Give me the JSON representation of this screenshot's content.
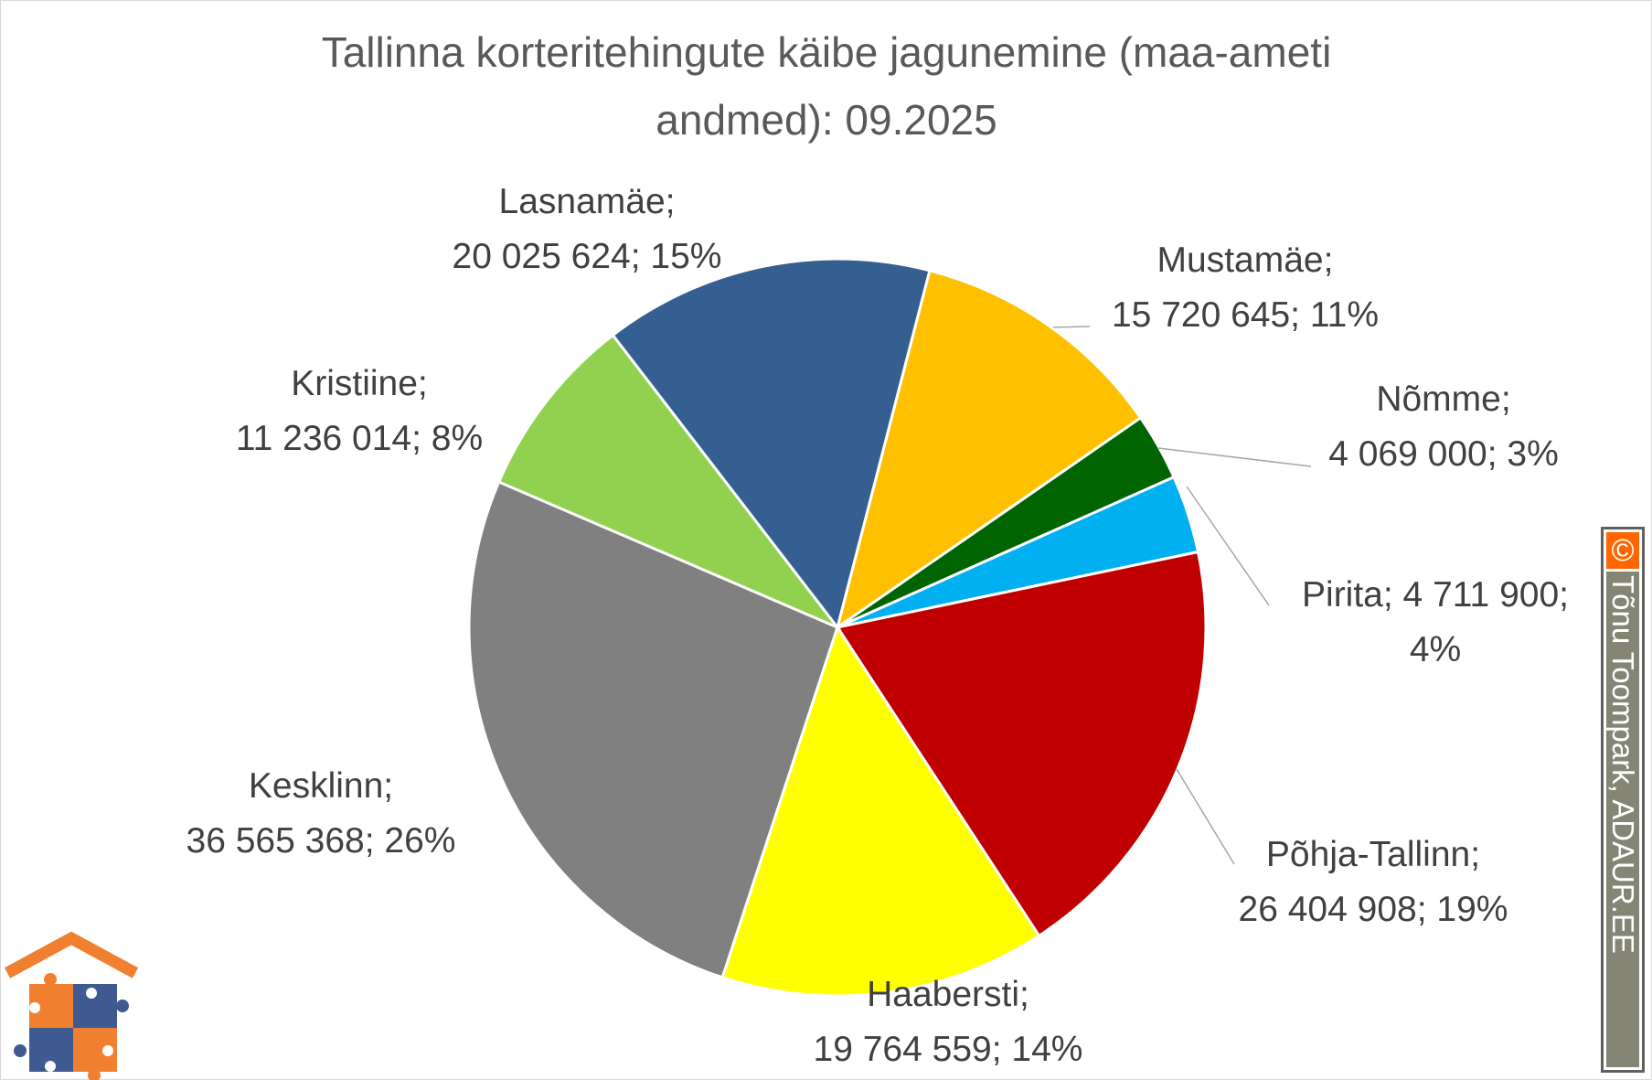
{
  "chart_data": {
    "type": "pie",
    "title": "Tallinna korteritehingute käibe jagunemine (maa-ameti andmed): 09.2025",
    "title_lines": [
      "Tallinna korteritehingute käibe jagunemine (maa-ameti",
      "andmed): 09.2025"
    ],
    "start_angle_deg": 14.5,
    "direction": "clockwise",
    "slices": [
      {
        "name": "Mustamäe",
        "value": 15720645,
        "percent": 11,
        "color": "#FFC000",
        "label_lines": [
          "Mustamäe;",
          "15 720 645; 11%"
        ]
      },
      {
        "name": "Nõmme",
        "value": 4069000,
        "percent": 3,
        "color": "#006400",
        "label_lines": [
          "Nõmme;",
          "4 069 000; 3%"
        ]
      },
      {
        "name": "Pirita",
        "value": 4711900,
        "percent": 4,
        "color": "#00B0F0",
        "label_lines": [
          "Pirita; 4 711 900;",
          "4%"
        ]
      },
      {
        "name": "Põhja-Tallinn",
        "value": 26404908,
        "percent": 19,
        "color": "#C00000",
        "label_lines": [
          "Põhja-Tallinn;",
          "26 404 908; 19%"
        ]
      },
      {
        "name": "Haabersti",
        "value": 19764559,
        "percent": 14,
        "color": "#FFFF00",
        "label_lines": [
          "Haabersti;",
          "19 764 559; 14%"
        ]
      },
      {
        "name": "Kesklinn",
        "value": 36565368,
        "percent": 26,
        "color": "#808080",
        "label_lines": [
          "Kesklinn;",
          "36 565 368; 26%"
        ]
      },
      {
        "name": "Kristiine",
        "value": 11236014,
        "percent": 8,
        "color": "#92D050",
        "label_lines": [
          "Kristiine;",
          "11 236 014; 8%"
        ]
      },
      {
        "name": "Lasnamäe",
        "value": 20025624,
        "percent": 15,
        "color": "#365F91",
        "label_lines": [
          "Lasnamäe;",
          "20 025 624; 15%"
        ]
      }
    ]
  },
  "watermark": {
    "symbol": "©",
    "text": "Tõnu Toompark, ADAUR.EE"
  },
  "logo": {
    "icon": "house-puzzle-logo"
  }
}
